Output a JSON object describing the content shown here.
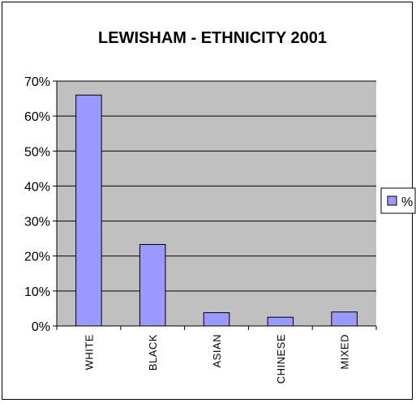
{
  "chart_data": {
    "type": "bar",
    "title": "LEWISHAM - ETHNICITY 2001",
    "xlabel": "",
    "ylabel": "",
    "categories": [
      "WHITE",
      "BLACK",
      "ASIAN",
      "CHINESE",
      "MIXED"
    ],
    "series": [
      {
        "name": "%",
        "values": [
          0.66,
          0.233,
          0.038,
          0.025,
          0.04
        ]
      }
    ],
    "ylim": [
      0,
      0.7
    ],
    "yticks": [
      0,
      0.1,
      0.2,
      0.3,
      0.4,
      0.5,
      0.6,
      0.7
    ],
    "ytick_labels": [
      "0%",
      "10%",
      "20%",
      "30%",
      "40%",
      "50%",
      "60%",
      "70%"
    ],
    "grid": true,
    "legend_position": "right",
    "colors": {
      "plot_background": "#c0c0c0",
      "bar_fill": "#9999ff",
      "bar_stroke": "#000000",
      "gridline": "#000000"
    }
  }
}
